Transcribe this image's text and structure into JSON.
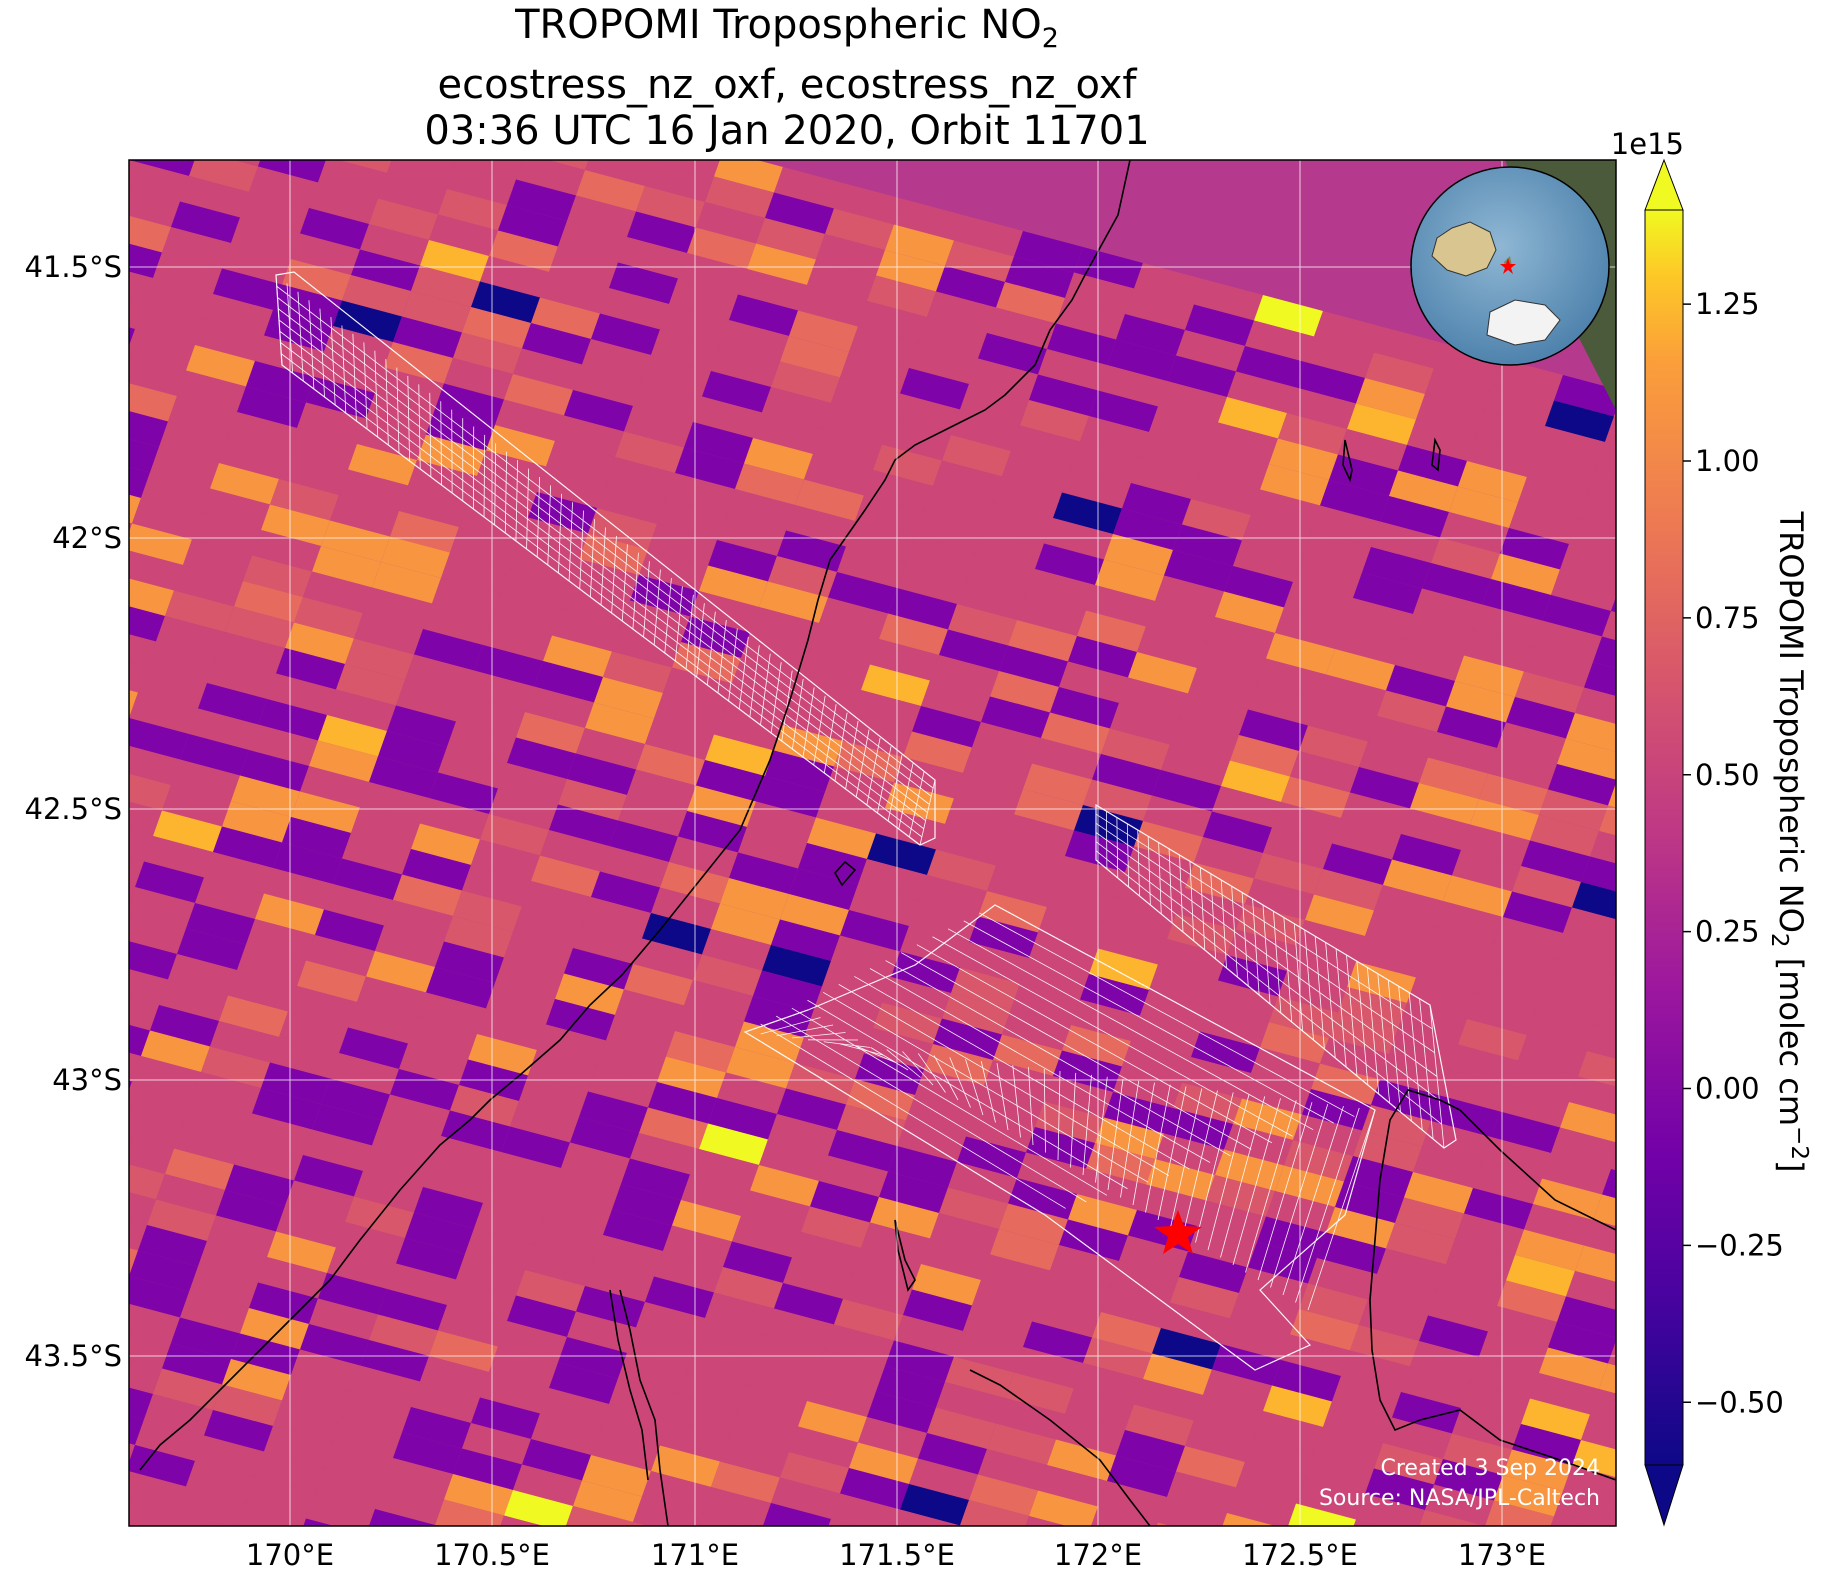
{
  "title": {
    "line1_prefix": "TROPOMI Tropospheric NO",
    "line1_sub": "2",
    "line2": "ecostress_nz_oxf, ecostress_nz_oxf",
    "line3": "03:36 UTC 16 Jan 2020, Orbit 11701"
  },
  "map": {
    "lon_range": [
      169.6,
      173.3
    ],
    "lat_range": [
      -43.8,
      -41.3
    ],
    "lon_ticks": [
      "170°E",
      "170.5°E",
      "171°E",
      "171.5°E",
      "172°E",
      "172.5°E",
      "173°E"
    ],
    "lat_ticks": [
      "41.5°S",
      "42°S",
      "42.5°S",
      "43°S",
      "43.5°S"
    ],
    "gridlines": true,
    "marker": {
      "lon": 172.2,
      "lat": -43.26,
      "symbol": "red star"
    },
    "credit_line1": "Created 3 Sep 2024",
    "credit_line2": "Source: NASA/JPL-Caltech",
    "inset": "globe centred near New Zealand, red star on the site"
  },
  "colorbar": {
    "colormap": "plasma",
    "min": -0.6,
    "max": 1.4,
    "extend": "both",
    "exponent_label": "1e15",
    "ticks": [
      "−0.50",
      "−0.25",
      "0.00",
      "0.25",
      "0.50",
      "0.75",
      "1.00",
      "1.25"
    ],
    "tick_values": [
      -0.5,
      -0.25,
      0.0,
      0.25,
      0.5,
      0.75,
      1.0,
      1.25
    ],
    "label_main": "TROPOMI Tropospheric NO",
    "label_sub": "2",
    "label_units": " [molec cm",
    "label_sup": "−2",
    "label_close": "]"
  },
  "colors": {
    "dark": "#0d0887",
    "purple": "#7e03a8",
    "magenta": "#cc4778",
    "orange": "#f89540",
    "yellow": "#f0f921"
  }
}
